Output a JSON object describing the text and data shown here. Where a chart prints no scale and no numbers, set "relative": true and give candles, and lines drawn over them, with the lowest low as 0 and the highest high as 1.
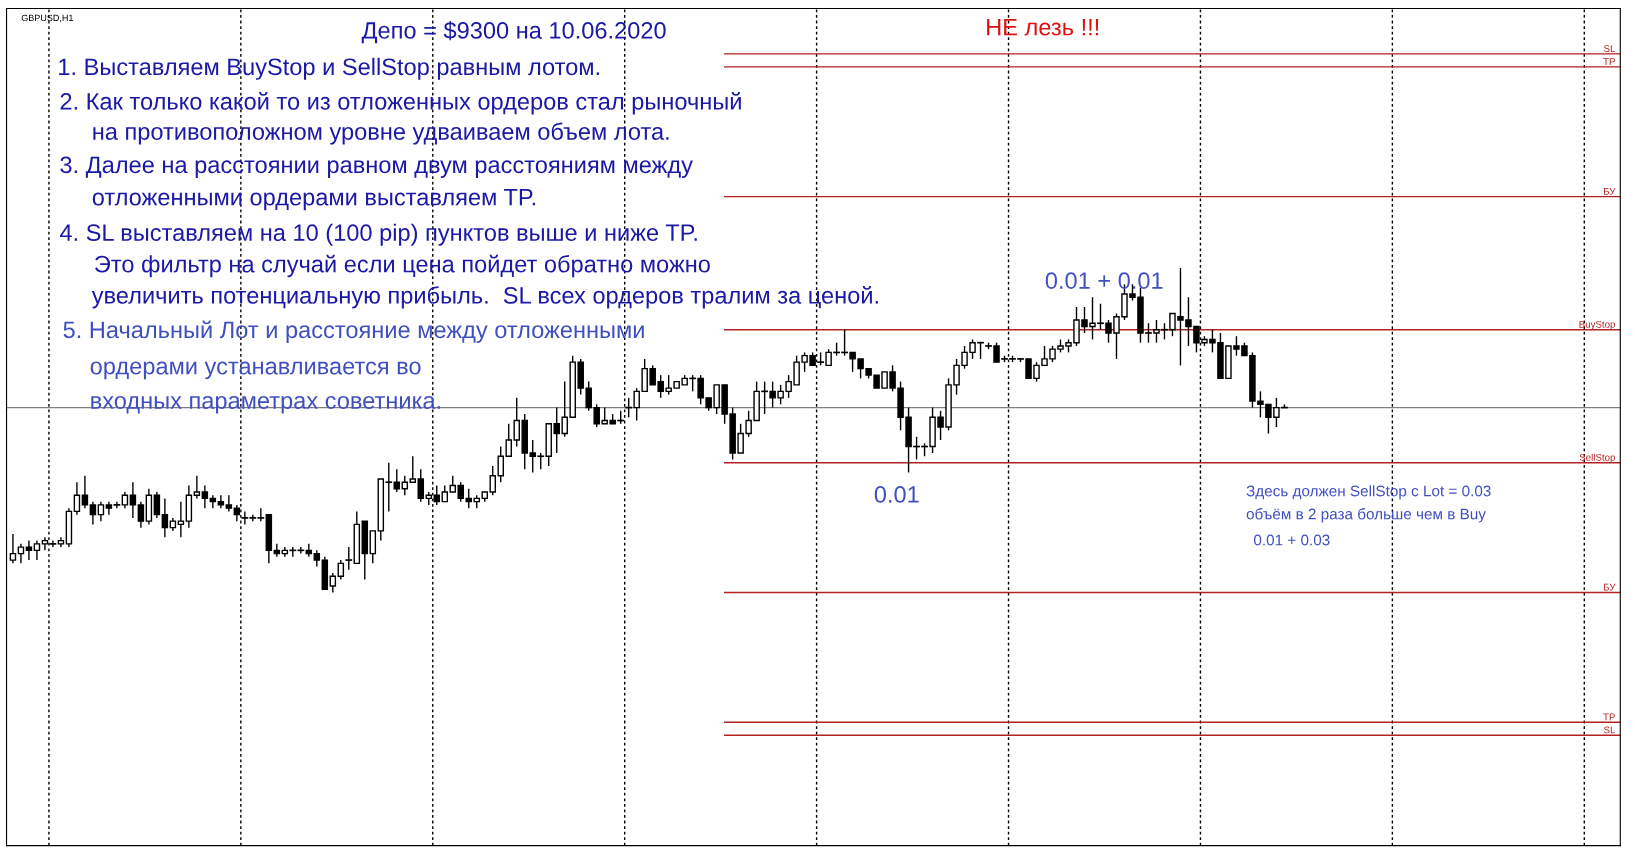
{
  "chart_data": {
    "type": "candlestick",
    "title": "GBPUSD,H1",
    "relative": true,
    "color": "#000000",
    "categories": [
      null,
      null,
      null,
      null,
      null,
      null,
      null,
      null,
      null,
      null,
      null,
      null,
      null,
      null,
      null,
      null,
      null,
      null,
      null,
      null,
      null,
      null,
      null,
      null,
      null,
      null,
      null,
      null,
      null,
      null,
      null,
      null,
      null,
      null,
      null,
      null,
      null,
      null,
      null,
      null,
      null,
      null,
      null,
      null,
      null,
      null,
      null,
      null,
      null,
      null,
      null,
      null,
      null,
      null,
      null,
      null,
      null,
      null,
      null,
      null,
      null,
      null,
      null,
      null,
      null,
      null,
      null,
      null,
      null,
      null,
      null,
      null,
      null,
      null,
      null,
      null,
      null,
      null,
      null,
      null,
      null,
      null,
      null,
      null,
      null,
      null,
      null,
      null,
      null,
      null,
      null,
      null,
      null,
      null,
      null,
      null,
      null,
      null,
      null,
      null,
      null,
      null,
      null,
      null,
      null,
      null,
      null,
      null,
      null,
      null,
      null,
      null,
      null,
      null,
      null,
      null,
      null,
      null,
      null,
      null,
      null,
      null,
      null,
      null,
      null,
      null,
      null,
      null,
      null,
      null,
      null,
      null,
      null,
      null,
      null,
      null,
      null,
      null,
      null,
      null,
      null,
      null,
      null,
      null,
      null,
      null,
      null,
      null,
      null,
      null,
      null,
      null,
      null,
      null,
      null,
      null,
      null,
      null,
      null,
      null
    ],
    "ohlc": [
      [
        0.1,
        0.18,
        0.09,
        0.12
      ],
      [
        0.12,
        0.15,
        0.09,
        0.14
      ],
      [
        0.14,
        0.16,
        0.1,
        0.13
      ],
      [
        0.13,
        0.16,
        0.1,
        0.15
      ],
      [
        0.15,
        0.17,
        0.13,
        0.16
      ],
      [
        0.15,
        0.16,
        0.14,
        0.15
      ],
      [
        0.15,
        0.17,
        0.14,
        0.16
      ],
      [
        0.15,
        0.26,
        0.14,
        0.25
      ],
      [
        0.25,
        0.34,
        0.24,
        0.3
      ],
      [
        0.3,
        0.36,
        0.26,
        0.27
      ],
      [
        0.27,
        0.28,
        0.21,
        0.24
      ],
      [
        0.24,
        0.28,
        0.22,
        0.27
      ],
      [
        0.27,
        0.28,
        0.24,
        0.26
      ],
      [
        0.27,
        0.28,
        0.26,
        0.27
      ],
      [
        0.27,
        0.31,
        0.26,
        0.3
      ],
      [
        0.3,
        0.34,
        0.23,
        0.27
      ],
      [
        0.27,
        0.28,
        0.2,
        0.22
      ],
      [
        0.22,
        0.32,
        0.21,
        0.3
      ],
      [
        0.3,
        0.31,
        0.23,
        0.24
      ],
      [
        0.24,
        0.29,
        0.17,
        0.2
      ],
      [
        0.2,
        0.23,
        0.19,
        0.22
      ],
      [
        0.21,
        0.28,
        0.17,
        0.22
      ],
      [
        0.22,
        0.33,
        0.2,
        0.3
      ],
      [
        0.3,
        0.36,
        0.29,
        0.31
      ],
      [
        0.31,
        0.33,
        0.26,
        0.29
      ],
      [
        0.29,
        0.3,
        0.26,
        0.28
      ],
      [
        0.28,
        0.3,
        0.26,
        0.27
      ],
      [
        0.27,
        0.3,
        0.25,
        0.26
      ],
      [
        0.26,
        0.27,
        0.22,
        0.24
      ],
      [
        0.23,
        0.25,
        0.21,
        0.23
      ],
      [
        0.23,
        0.24,
        0.22,
        0.23
      ],
      [
        0.23,
        0.26,
        0.22,
        0.23
      ],
      [
        0.24,
        0.24,
        0.09,
        0.13
      ],
      [
        0.13,
        0.15,
        0.11,
        0.12
      ],
      [
        0.12,
        0.14,
        0.11,
        0.13
      ],
      [
        0.13,
        0.14,
        0.11,
        0.13
      ],
      [
        0.13,
        0.14,
        0.12,
        0.13
      ],
      [
        0.13,
        0.15,
        0.11,
        0.12
      ],
      [
        0.12,
        0.13,
        0.08,
        0.1
      ],
      [
        0.1,
        0.11,
        0.01,
        0.01
      ],
      [
        0.02,
        0.06,
        0.0,
        0.05
      ],
      [
        0.05,
        0.1,
        0.04,
        0.09
      ],
      [
        0.1,
        0.14,
        0.07,
        0.1
      ],
      [
        0.09,
        0.25,
        0.09,
        0.21
      ],
      [
        0.22,
        0.22,
        0.04,
        0.12
      ],
      [
        0.12,
        0.19,
        0.09,
        0.19
      ],
      [
        0.19,
        0.35,
        0.16,
        0.35
      ],
      [
        0.34,
        0.4,
        0.25,
        0.34
      ],
      [
        0.34,
        0.38,
        0.31,
        0.32
      ],
      [
        0.32,
        0.36,
        0.3,
        0.34
      ],
      [
        0.34,
        0.42,
        0.34,
        0.35
      ],
      [
        0.35,
        0.38,
        0.28,
        0.29
      ],
      [
        0.29,
        0.31,
        0.27,
        0.3
      ],
      [
        0.3,
        0.33,
        0.27,
        0.28
      ],
      [
        0.28,
        0.33,
        0.28,
        0.31
      ],
      [
        0.31,
        0.36,
        0.31,
        0.33
      ],
      [
        0.33,
        0.34,
        0.28,
        0.29
      ],
      [
        0.29,
        0.32,
        0.26,
        0.28
      ],
      [
        0.28,
        0.3,
        0.26,
        0.29
      ],
      [
        0.29,
        0.31,
        0.28,
        0.31
      ],
      [
        0.31,
        0.39,
        0.3,
        0.36
      ],
      [
        0.36,
        0.45,
        0.34,
        0.42
      ],
      [
        0.42,
        0.52,
        0.42,
        0.47
      ],
      [
        0.47,
        0.6,
        0.45,
        0.53
      ],
      [
        0.53,
        0.55,
        0.38,
        0.43
      ],
      [
        0.43,
        0.47,
        0.37,
        0.42
      ],
      [
        0.42,
        0.43,
        0.38,
        0.42
      ],
      [
        0.42,
        0.52,
        0.39,
        0.52
      ],
      [
        0.52,
        0.57,
        0.43,
        0.49
      ],
      [
        0.49,
        0.65,
        0.48,
        0.54
      ],
      [
        0.54,
        0.73,
        0.54,
        0.71
      ],
      [
        0.71,
        0.72,
        0.61,
        0.63
      ],
      [
        0.63,
        0.65,
        0.56,
        0.57
      ],
      [
        0.57,
        0.58,
        0.51,
        0.52
      ],
      [
        0.52,
        0.57,
        0.52,
        0.53
      ],
      [
        0.53,
        0.55,
        0.52,
        0.52
      ],
      [
        0.53,
        0.56,
        0.52,
        0.53
      ],
      [
        0.57,
        0.6,
        0.54,
        0.57
      ],
      [
        0.57,
        0.63,
        0.53,
        0.62
      ],
      [
        0.62,
        0.72,
        0.62,
        0.69
      ],
      [
        0.69,
        0.7,
        0.64,
        0.64
      ],
      [
        0.65,
        0.67,
        0.6,
        0.62
      ],
      [
        0.62,
        0.67,
        0.61,
        0.63
      ],
      [
        0.63,
        0.65,
        0.63,
        0.65
      ],
      [
        0.64,
        0.67,
        0.64,
        0.66
      ],
      [
        0.66,
        0.67,
        0.62,
        0.66
      ],
      [
        0.66,
        0.67,
        0.58,
        0.6
      ],
      [
        0.6,
        0.6,
        0.56,
        0.57
      ],
      [
        0.57,
        0.64,
        0.55,
        0.64
      ],
      [
        0.64,
        0.64,
        0.52,
        0.55
      ],
      [
        0.55,
        0.57,
        0.41,
        0.43
      ],
      [
        0.43,
        0.52,
        0.43,
        0.49
      ],
      [
        0.49,
        0.56,
        0.48,
        0.53
      ],
      [
        0.53,
        0.65,
        0.53,
        0.62
      ],
      [
        0.62,
        0.65,
        0.55,
        0.62
      ],
      [
        0.62,
        0.65,
        0.57,
        0.6
      ],
      [
        0.6,
        0.64,
        0.58,
        0.62
      ],
      [
        0.62,
        0.67,
        0.6,
        0.65
      ],
      [
        0.64,
        0.73,
        0.64,
        0.71
      ],
      [
        0.71,
        0.74,
        0.68,
        0.73
      ],
      [
        0.73,
        0.74,
        0.7,
        0.7
      ],
      [
        0.71,
        0.74,
        0.7,
        0.71
      ],
      [
        0.7,
        0.75,
        0.7,
        0.74
      ],
      [
        0.74,
        0.77,
        0.73,
        0.74
      ],
      [
        0.74,
        0.81,
        0.73,
        0.74
      ],
      [
        0.74,
        0.74,
        0.68,
        0.72
      ],
      [
        0.72,
        0.72,
        0.66,
        0.69
      ],
      [
        0.69,
        0.69,
        0.66,
        0.67
      ],
      [
        0.67,
        0.67,
        0.63,
        0.63
      ],
      [
        0.63,
        0.68,
        0.63,
        0.68
      ],
      [
        0.68,
        0.7,
        0.62,
        0.63
      ],
      [
        0.63,
        0.65,
        0.5,
        0.54
      ],
      [
        0.54,
        0.57,
        0.37,
        0.45
      ],
      [
        0.45,
        0.48,
        0.41,
        0.45
      ],
      [
        0.45,
        0.46,
        0.42,
        0.45
      ],
      [
        0.45,
        0.57,
        0.43,
        0.54
      ],
      [
        0.54,
        0.56,
        0.47,
        0.51
      ],
      [
        0.51,
        0.66,
        0.5,
        0.64
      ],
      [
        0.64,
        0.72,
        0.61,
        0.7
      ],
      [
        0.7,
        0.76,
        0.69,
        0.74
      ],
      [
        0.74,
        0.78,
        0.72,
        0.77
      ],
      [
        0.77,
        0.77,
        0.72,
        0.77
      ],
      [
        0.76,
        0.77,
        0.75,
        0.76
      ],
      [
        0.76,
        0.77,
        0.71,
        0.71
      ],
      [
        0.72,
        0.73,
        0.71,
        0.72
      ],
      [
        0.72,
        0.73,
        0.71,
        0.72
      ],
      [
        0.72,
        0.72,
        0.71,
        0.72
      ],
      [
        0.72,
        0.72,
        0.66,
        0.66
      ],
      [
        0.66,
        0.71,
        0.65,
        0.7
      ],
      [
        0.7,
        0.76,
        0.7,
        0.72
      ],
      [
        0.72,
        0.76,
        0.71,
        0.75
      ],
      [
        0.75,
        0.78,
        0.74,
        0.76
      ],
      [
        0.76,
        0.78,
        0.74,
        0.77
      ],
      [
        0.77,
        0.88,
        0.76,
        0.84
      ],
      [
        0.84,
        0.88,
        0.8,
        0.82
      ],
      [
        0.82,
        0.91,
        0.78,
        0.83
      ],
      [
        0.83,
        0.89,
        0.81,
        0.83
      ],
      [
        0.83,
        0.84,
        0.77,
        0.8
      ],
      [
        0.8,
        0.86,
        0.72,
        0.85
      ],
      [
        0.85,
        0.95,
        0.84,
        0.92
      ],
      [
        0.92,
        0.95,
        0.9,
        0.91
      ],
      [
        0.91,
        0.94,
        0.77,
        0.8
      ],
      [
        0.8,
        0.83,
        0.77,
        0.8
      ],
      [
        0.8,
        0.84,
        0.77,
        0.81
      ],
      [
        0.81,
        0.83,
        0.78,
        0.81
      ],
      [
        0.81,
        0.86,
        0.79,
        0.86
      ],
      [
        0.85,
        1.0,
        0.7,
        0.84
      ],
      [
        0.84,
        0.91,
        0.76,
        0.82
      ],
      [
        0.82,
        0.82,
        0.74,
        0.77
      ],
      [
        0.77,
        0.79,
        0.76,
        0.78
      ],
      [
        0.78,
        0.81,
        0.74,
        0.77
      ],
      [
        0.77,
        0.8,
        0.66,
        0.66
      ],
      [
        0.66,
        0.76,
        0.66,
        0.76
      ],
      [
        0.76,
        0.79,
        0.73,
        0.75
      ],
      [
        0.76,
        0.77,
        0.73,
        0.73
      ],
      [
        0.73,
        0.74,
        0.57,
        0.59
      ],
      [
        0.59,
        0.62,
        0.54,
        0.58
      ],
      [
        0.58,
        0.58,
        0.49,
        0.54
      ],
      [
        0.54,
        0.6,
        0.51,
        0.57
      ],
      [
        0.57,
        0.58,
        0.57,
        0.57
      ]
    ],
    "ref_lines": [
      {
        "axis": "y",
        "value": 1.66,
        "label": "SL",
        "color": "#b22222"
      },
      {
        "axis": "y",
        "value": 1.62,
        "label": "TP",
        "color": "#b22222"
      },
      {
        "axis": "y",
        "value": 1.22,
        "label": "БУ",
        "color": "#b22222"
      },
      {
        "axis": "y",
        "value": 0.81,
        "label": "BuyStop",
        "color": "#b22222"
      },
      {
        "axis": "y",
        "value": 0.57,
        "label": null,
        "color": "#808080"
      },
      {
        "axis": "y",
        "value": 0.4,
        "label": "SellStop",
        "color": "#b22222"
      },
      {
        "axis": "y",
        "value": 0.0,
        "label": "БУ",
        "color": "#b22222"
      },
      {
        "axis": "y",
        "value": -0.4,
        "label": "TP",
        "color": "#b22222"
      },
      {
        "axis": "y",
        "value": -0.44,
        "label": "SL",
        "color": "#b22222"
      }
    ],
    "annotations": [
      "Депо = $9300 на 10.06.2020",
      "НЕ лезь !!!",
      "1. Выставляем BuyStop и SellStop равным лотом.",
      "2. Как только какой то из отложенных ордеров стал рыночный",
      "на противоположном уровне удваиваем объем лота.",
      "3. Далее на расстоянии равном двум расстояниям между",
      "отложенными ордерами выставляем TP.",
      "4. SL выставляем на 10 (100 pip) пунктов выше и ниже TP.",
      "Это фильтр на случай если цена пойдет обратно можно",
      "увеличить потенциальную прибыль.  SL всех ордеров тралим за ценой.",
      "5. Начальный Лот и расстояние между отложенными",
      "ордерами устанавливается во",
      "входных параметрах советника.",
      "0.01 + 0.01",
      "0.01",
      "Здесь должен SellStop с Lot = 0.03",
      "объём в 2 раза больше чем в Buy",
      "0.01 + 0.03"
    ]
  }
}
